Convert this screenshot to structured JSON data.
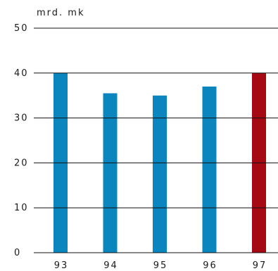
{
  "chart_data": {
    "type": "bar",
    "ylabel": "mrd. mk",
    "categories": [
      "93",
      "94",
      "95",
      "96",
      "97"
    ],
    "values": [
      40,
      35.5,
      35,
      37,
      40
    ],
    "ylim": [
      0,
      50
    ],
    "yticks": [
      0,
      10,
      20,
      30,
      40,
      50
    ],
    "grid": true,
    "bar_colors": [
      "#0a85bd",
      "#0a85bd",
      "#0a85bd",
      "#0a85bd",
      "#a50a14"
    ]
  }
}
